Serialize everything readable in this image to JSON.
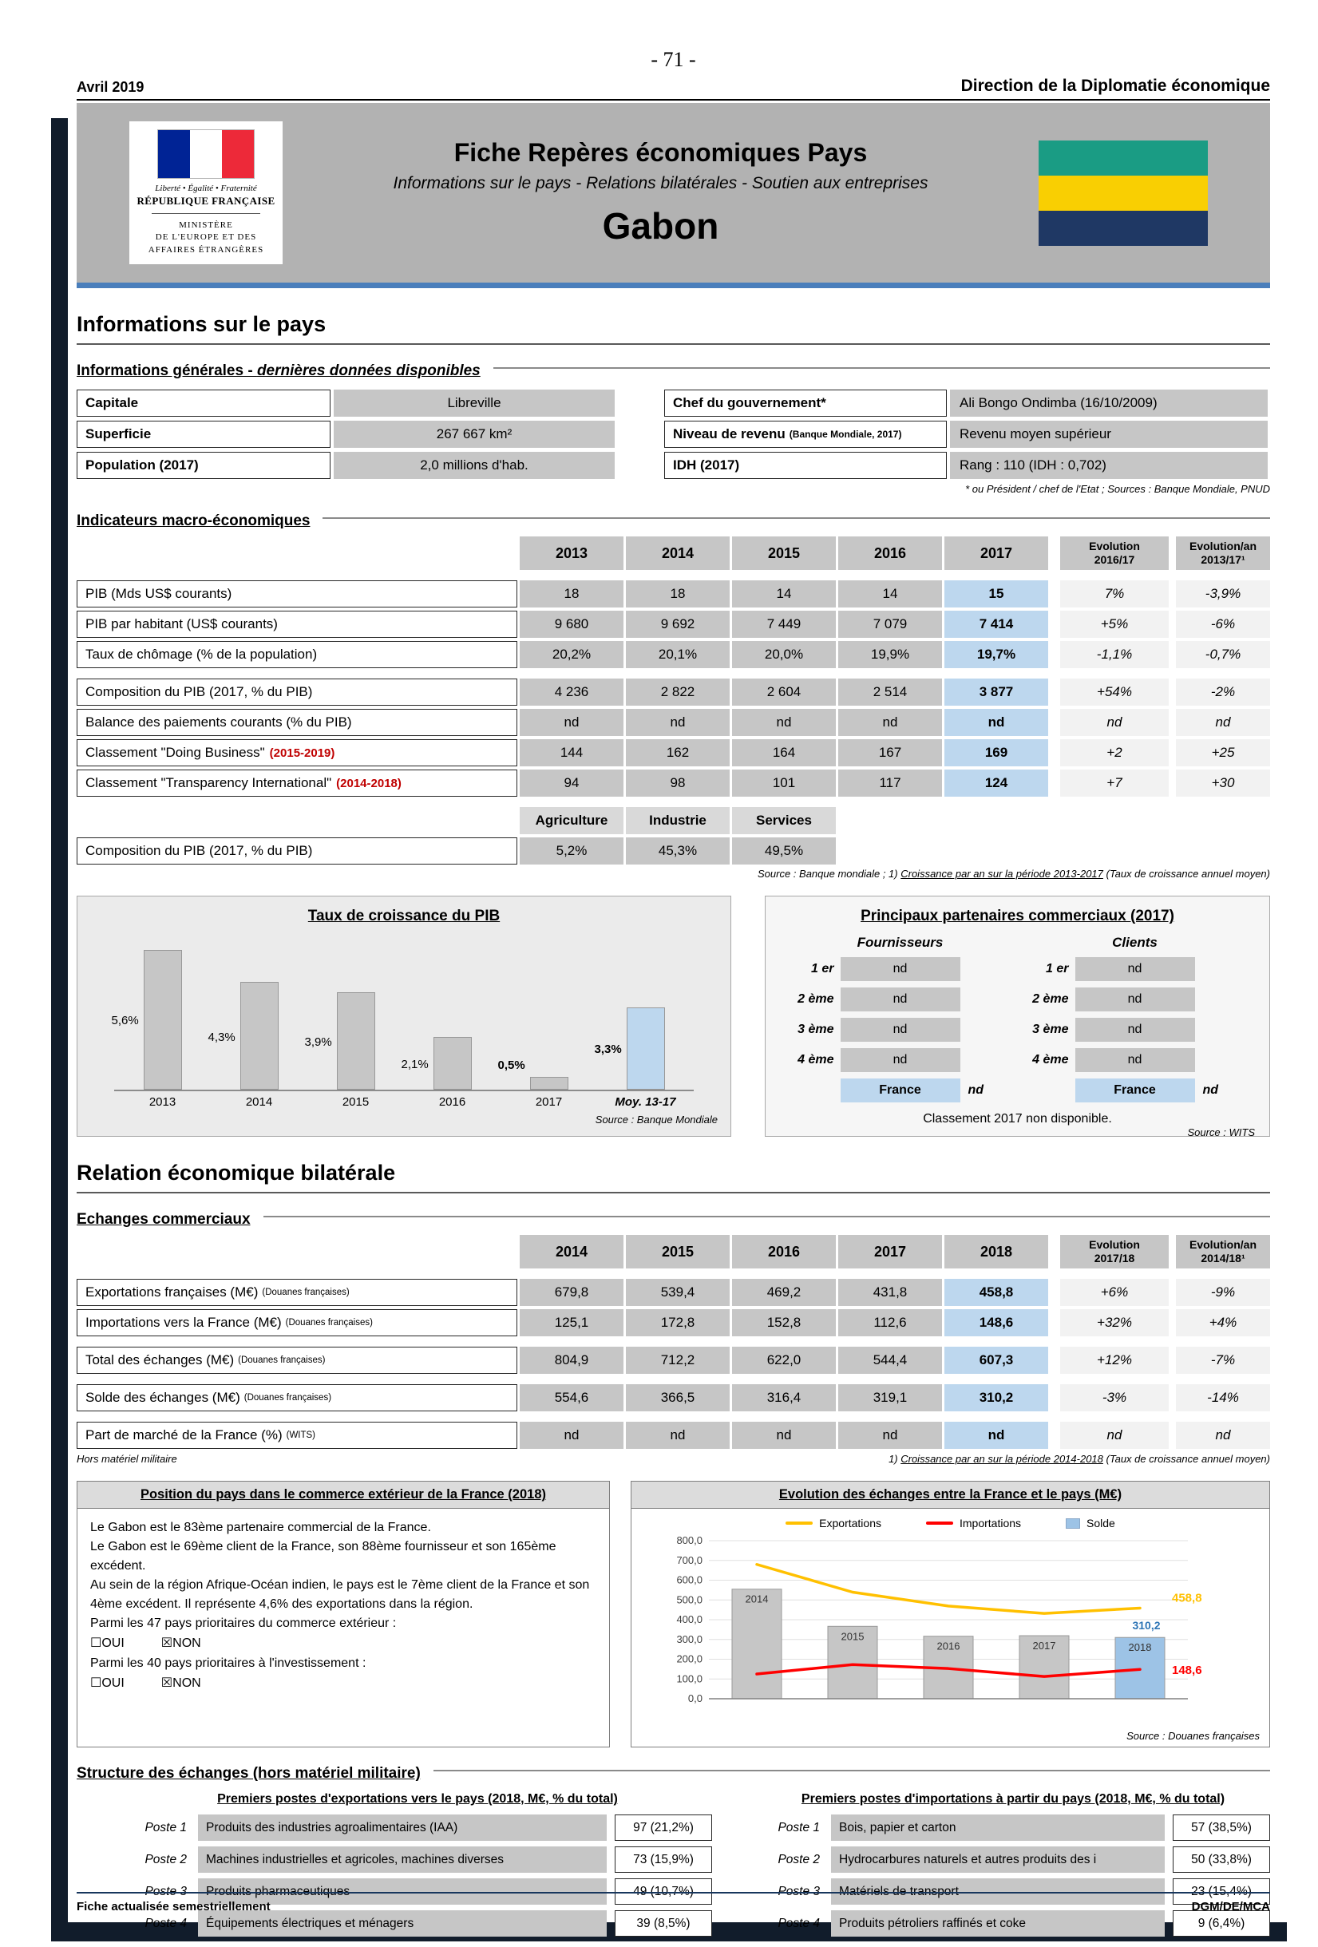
{
  "page": {
    "number": "- 71 -",
    "date": "Avril 2019",
    "direction": "Direction de la Diplomatie économique",
    "footer_left": "Fiche actualisée semestriellement",
    "footer_right": "DGM/DE/MCA"
  },
  "banner": {
    "logo_motto": "Liberté • Égalité • Fraternité",
    "logo_republic": "RÉPUBLIQUE FRANÇAISE",
    "logo_ministry_l1": "MINISTÈRE",
    "logo_ministry_l2": "DE L'EUROPE ET DES",
    "logo_ministry_l3": "AFFAIRES ÉTRANGÈRES",
    "title": "Fiche Repères économiques Pays",
    "subtitle": "Informations sur le pays - Relations bilatérales - Soutien aux entreprises",
    "country": "Gabon",
    "flag_colors": {
      "top": "#1a9c84",
      "middle": "#f9cf02",
      "bottom": "#1f3864"
    }
  },
  "info_section": {
    "heading": "Informations sur le pays",
    "general_title_normal": "Informations générales - ",
    "general_title_italic": "dernières données disponibles",
    "fields_left": [
      {
        "label": "Capitale",
        "value": "Libreville"
      },
      {
        "label": "Superficie",
        "value": "267 667 km²"
      },
      {
        "label": "Population (2017)",
        "value": "2,0 millions d'hab."
      }
    ],
    "fields_right": [
      {
        "label": "Chef du gouvernement*",
        "value": "Ali Bongo Ondimba (16/10/2009)"
      },
      {
        "label": "Niveau de revenu",
        "label_note": "(Banque Mondiale, 2017)",
        "value": "Revenu moyen supérieur"
      },
      {
        "label": "IDH (2017)",
        "value": "Rang : 110 (IDH : 0,702)"
      }
    ],
    "footnote": "* ou Président / chef de l'Etat ; Sources : Banque Mondiale, PNUD"
  },
  "macro": {
    "title": "Indicateurs macro-économiques",
    "col_years": [
      "2013",
      "2014",
      "2015",
      "2016",
      "2017"
    ],
    "col_evo_line1": "Evolution",
    "col_evo_line2": "2016/17",
    "col_evoan_line1": "Evolution/an",
    "col_evoan_line2": "2013/17¹",
    "rows": [
      {
        "label": "PIB (Mds US$ courants)",
        "v": [
          "18",
          "18",
          "14",
          "14",
          "15"
        ],
        "evo": "7%",
        "evoan": "-3,9%"
      },
      {
        "label": "PIB par habitant (US$ courants)",
        "v": [
          "9 680",
          "9 692",
          "7 449",
          "7 079",
          "7 414"
        ],
        "evo": "+5%",
        "evoan": "-6%"
      },
      {
        "label": "Taux de chômage (% de la population)",
        "v": [
          "20,2%",
          "20,1%",
          "20,0%",
          "19,9%",
          "19,7%"
        ],
        "evo": "-1,1%",
        "evoan": "-0,7%"
      },
      {
        "label": "Composition du PIB (2017, % du PIB)",
        "v": [
          "4 236",
          "2 822",
          "2 604",
          "2 514",
          "3 877"
        ],
        "evo": "+54%",
        "evoan": "-2%"
      },
      {
        "label": "Balance des paiements courants (% du PIB)",
        "v": [
          "nd",
          "nd",
          "nd",
          "nd",
          "nd"
        ],
        "evo": "nd",
        "evoan": "nd"
      },
      {
        "label": "Classement \"Doing Business\"",
        "label_red": "(2015-2019)",
        "v": [
          "144",
          "162",
          "164",
          "167",
          "169"
        ],
        "evo": "+2",
        "evoan": "+25"
      },
      {
        "label": "Classement \"Transparency International\"",
        "label_red": "(2014-2018)",
        "v": [
          "94",
          "98",
          "101",
          "117",
          "124"
        ],
        "evo": "+7",
        "evoan": "+30"
      }
    ],
    "sector_cols": [
      "Agriculture",
      "Industrie",
      "Services"
    ],
    "sector_row": {
      "label": "Composition du PIB (2017, % du PIB)",
      "v": [
        "5,2%",
        "45,3%",
        "49,5%"
      ]
    },
    "source_prefix": "Source : Banque mondiale ; 1) ",
    "source_underlined": "Croissance par an sur la période 2013-2017",
    "source_suffix": " (Taux de croissance annuel moyen)"
  },
  "partners": {
    "title": "Principaux partenaires commerciaux (2017)",
    "header_fournisseurs": "Fournisseurs",
    "header_clients": "Clients",
    "ranks": [
      "1 er",
      "2 ème",
      "3 ème",
      "4 ème"
    ],
    "fournisseurs": [
      "nd",
      "nd",
      "nd",
      "nd"
    ],
    "clients": [
      "nd",
      "nd",
      "nd",
      "nd"
    ],
    "france_label": "France",
    "france_fournisseur_value": "nd",
    "france_client_value": "nd",
    "note": "Classement 2017 non disponible.",
    "source": "Source : WITS"
  },
  "bilateral": {
    "heading": "Relation économique bilatérale",
    "echanges_title": "Echanges commerciaux",
    "col_years": [
      "2014",
      "2015",
      "2016",
      "2017",
      "2018"
    ],
    "col_evo_line1": "Evolution",
    "col_evo_line2": "2017/18",
    "col_evoan_line1": "Evolution/an",
    "col_evoan_line2": "2014/18¹",
    "rows": [
      {
        "label": "Exportations françaises (M€)",
        "label_note": "(Douanes françaises)",
        "v": [
          "679,8",
          "539,4",
          "469,2",
          "431,8",
          "458,8"
        ],
        "evo": "+6%",
        "evoan": "-9%"
      },
      {
        "label": "Importations vers la France (M€)",
        "label_note": "(Douanes françaises)",
        "v": [
          "125,1",
          "172,8",
          "152,8",
          "112,6",
          "148,6"
        ],
        "evo": "+32%",
        "evoan": "+4%"
      },
      {
        "label": "Total des échanges (M€)",
        "label_note": "(Douanes françaises)",
        "v": [
          "804,9",
          "712,2",
          "622,0",
          "544,4",
          "607,3"
        ],
        "evo": "+12%",
        "evoan": "-7%"
      },
      {
        "label": "Solde des échanges (M€)",
        "label_note": "(Douanes françaises)",
        "v": [
          "554,6",
          "366,5",
          "316,4",
          "319,1",
          "310,2"
        ],
        "evo": "-3%",
        "evoan": "-14%"
      },
      {
        "label": "Part de marché de la France (%)",
        "label_note": "(WITS)",
        "v": [
          "nd",
          "nd",
          "nd",
          "nd",
          "nd"
        ],
        "evo": "nd",
        "evoan": "nd"
      }
    ],
    "note_left": "Hors matériel militaire",
    "note_right_prefix": "1) ",
    "note_right_underlined": "Croissance par an sur la période 2014-2018",
    "note_right_suffix": " (Taux de croissance annuel moyen)"
  },
  "position_box": {
    "title": "Position du pays dans le commerce extérieur de la France (2018)",
    "line1": "Le Gabon est le 83ème partenaire commercial de la France.",
    "line2": "Le Gabon est le 69ème client de la France, son 88ème fournisseur et son 165ème excédent.",
    "line3": "Au sein de la région Afrique-Océan indien, le pays est le 7ème client de la France et son 4ème excédent. Il représente 4,6% des exportations dans la région.",
    "line4": "Parmi les 47 pays prioritaires du commerce extérieur :",
    "line5": "Parmi les 40 pays prioritaires à l'investissement :",
    "cb_oui": "☐OUI",
    "cb_non": "☒NON"
  },
  "structure": {
    "title": "Structure des échanges (hors matériel militaire)",
    "exports_header": "Premiers postes d'exportations vers le pays (2018, M€, % du total)",
    "exports_rows": [
      {
        "poste": "Poste 1",
        "desc": "Produits des industries agroalimentaires (IAA)",
        "value": "97 (21,2%)"
      },
      {
        "poste": "Poste 2",
        "desc": "Machines industrielles et agricoles, machines diverses",
        "value": "73 (15,9%)"
      },
      {
        "poste": "Poste 3",
        "desc": "Produits pharmaceutiques",
        "value": "49 (10,7%)"
      },
      {
        "poste": "Poste 4",
        "desc": "Équipements électriques et ménagers",
        "value": "39 (8,5%)"
      }
    ],
    "imports_header": "Premiers postes d'importations à partir du pays (2018, M€, % du total)",
    "imports_rows": [
      {
        "poste": "Poste 1",
        "desc": "Bois, papier et carton",
        "value": "57 (38,5%)"
      },
      {
        "poste": "Poste 2",
        "desc": "Hydrocarbures naturels et autres produits des i",
        "value": "50 (33,8%)"
      },
      {
        "poste": "Poste 3",
        "desc": "Matériels de transport",
        "value": "23 (15,4%)"
      },
      {
        "poste": "Poste 4",
        "desc": "Produits pétroliers raffinés et coke",
        "value": "9 (6,4%)"
      }
    ]
  },
  "chart_data": [
    {
      "type": "bar",
      "title": "Taux de croissance du PIB",
      "categories": [
        "2013",
        "2014",
        "2015",
        "2016",
        "2017",
        "Moy. 13-17"
      ],
      "values": [
        5.6,
        4.3,
        3.9,
        2.1,
        0.5,
        3.3
      ],
      "value_labels": [
        "5,6%",
        "4,3%",
        "3,9%",
        "2,1%",
        "0,5%",
        "3,3%"
      ],
      "bold_flags": [
        false,
        false,
        false,
        false,
        true,
        true
      ],
      "bar_colors": [
        "#c6c6c6",
        "#c6c6c6",
        "#c6c6c6",
        "#c6c6c6",
        "#c6c6c6",
        "#bdd7ee"
      ],
      "ylim": [
        0,
        6
      ],
      "source": "Source : Banque Mondiale"
    },
    {
      "type": "combo",
      "title": "Evolution des échanges entre la France et le pays (M€)",
      "categories": [
        "2014",
        "2015",
        "2016",
        "2017",
        "2018"
      ],
      "series": [
        {
          "name": "Exportations",
          "kind": "line",
          "color": "#ffc000",
          "values": [
            679.8,
            539.4,
            469.2,
            431.8,
            458.8
          ],
          "end_label": "458,8"
        },
        {
          "name": "Importations",
          "kind": "line",
          "color": "#ff0000",
          "values": [
            125.1,
            172.8,
            152.8,
            112.6,
            148.6
          ],
          "end_label": "148,6"
        },
        {
          "name": "Solde",
          "kind": "bar",
          "color": "#c6c6c6",
          "highlight_color": "#9dc3e6",
          "highlight_index": 4,
          "values": [
            554.6,
            366.5,
            316.4,
            319.1,
            310.2
          ],
          "end_label": "310,2",
          "end_label_color": "#2e75b6"
        }
      ],
      "ylim": [
        0,
        800
      ],
      "ytick_labels": [
        "800,0",
        "700,0",
        "600,0",
        "500,0",
        "400,0",
        "300,0",
        "200,0",
        "100,0",
        "0,0"
      ],
      "source": "Source : Douanes françaises"
    }
  ]
}
